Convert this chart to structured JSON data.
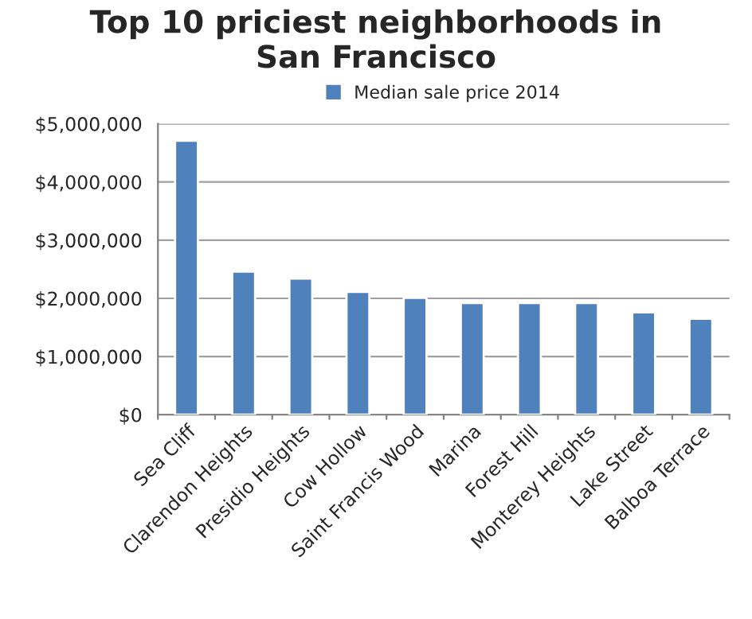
{
  "chart_data": {
    "type": "bar",
    "title": "Top 10 priciest neighborhoods in\nSan Francisco",
    "categories": [
      "Sea Cliff",
      "Clarendon Heights",
      "Presidio Heights",
      "Cow Hollow",
      "Saint Francis Wood",
      "Marina",
      "Forest Hill",
      "Monterey Heights",
      "Lake Street",
      "Balboa Terrace"
    ],
    "series": [
      {
        "name": "Median sale price 2014",
        "color": "#4f81bd",
        "values": [
          4710000,
          2460000,
          2340000,
          2110000,
          2010000,
          1920000,
          1920000,
          1920000,
          1760000,
          1650000
        ]
      }
    ],
    "ylim": [
      0,
      5000000
    ],
    "yticks": [
      {
        "value": 0,
        "label": "$0"
      },
      {
        "value": 1000000,
        "label": "$1,000,000"
      },
      {
        "value": 2000000,
        "label": "$2,000,000"
      },
      {
        "value": 3000000,
        "label": "$3,000,000"
      },
      {
        "value": 4000000,
        "label": "$4,000,000"
      },
      {
        "value": 5000000,
        "label": "$5,000,000"
      }
    ],
    "grid": "y",
    "legend": "top"
  }
}
